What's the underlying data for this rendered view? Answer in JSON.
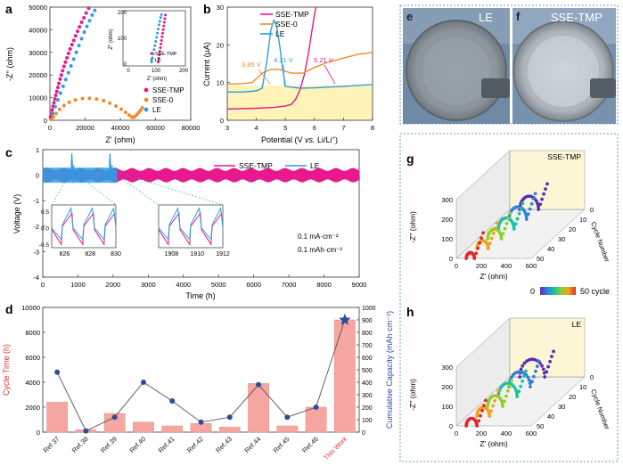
{
  "colors": {
    "pink": "#e8198c",
    "orange": "#f08a2a",
    "blue": "#2b9ee2",
    "navy": "#2a4d9a",
    "red_axis": "#e0302f",
    "bar": "#f5a6a0",
    "bar_fill_b": "#fff3b8",
    "dashed_box": "#3a78c0"
  },
  "panels": {
    "a": "a",
    "b": "b",
    "c": "c",
    "d": "d",
    "e": "e",
    "f": "f",
    "g": "g",
    "h": "h"
  },
  "photos": {
    "e_label": "LE",
    "f_label": "SSE-TMP"
  },
  "chart_data": [
    {
      "id": "a",
      "type": "scatter",
      "xlabel": "Z' (ohm)",
      "ylabel": "-Z'' (ohm)",
      "xlim": [
        0,
        80000
      ],
      "ylim": [
        0,
        50000
      ],
      "xticks": [
        "0",
        "20000",
        "40000",
        "60000",
        "80000"
      ],
      "yticks": [
        "0",
        "10000",
        "20000",
        "30000",
        "40000",
        "50000"
      ],
      "legend": [
        "SSE-TMP",
        "SSE-0",
        "LE"
      ],
      "series": [
        {
          "name": "SSE-TMP",
          "color": "#e8198c",
          "x": [
            400,
            800,
            1300,
            1800,
            2300,
            2800,
            3300,
            3900,
            4500,
            5100,
            5800,
            6500,
            7200,
            8000,
            8800,
            9700,
            10600,
            11500,
            12500,
            13500,
            14600,
            15700,
            16800,
            18000,
            19300,
            20600,
            22000
          ],
          "y": [
            1500,
            3000,
            4600,
            6200,
            7800,
            9400,
            11000,
            12700,
            14500,
            16300,
            18200,
            20000,
            21900,
            23800,
            25700,
            27600,
            29600,
            31500,
            33400,
            35300,
            37300,
            39300,
            41300,
            43300,
            45300,
            47400,
            49500
          ]
        },
        {
          "name": "SSE-0",
          "color": "#f08a2a",
          "x": [
            1000,
            2000,
            3500,
            5500,
            8000,
            11000,
            14500,
            18500,
            22500,
            26500,
            30500,
            34000,
            37500,
            40500,
            43000,
            45000,
            46500,
            47500,
            48500,
            49500,
            50500,
            51500,
            52500
          ],
          "y": [
            400,
            1500,
            3000,
            4800,
            6500,
            7900,
            9000,
            9600,
            9700,
            9400,
            8700,
            7600,
            6300,
            4900,
            3500,
            2300,
            1500,
            1300,
            1800,
            2600,
            3500,
            4500,
            5500
          ]
        },
        {
          "name": "LE",
          "color": "#2b9ee2",
          "x": [
            1500,
            3000,
            4500,
            6000,
            7500,
            9000,
            10500,
            12000,
            13500,
            15000,
            16500,
            18000,
            19500,
            21000,
            22500,
            24000,
            25500
          ],
          "y": [
            3000,
            6000,
            9000,
            12000,
            15000,
            18000,
            21000,
            24000,
            27000,
            30000,
            33000,
            36000,
            39000,
            41500,
            44000,
            46500,
            48500
          ]
        }
      ],
      "inset": {
        "xlabel": "Z' (ohm)",
        "ylabel": "Z'' (ohm)",
        "xlim": [
          0,
          200
        ],
        "ylim": [
          0,
          200
        ],
        "xticks": [
          "0",
          "100",
          "200"
        ],
        "yticks": [
          "0",
          "100",
          "200"
        ],
        "legend": [
          "SSE-TMP",
          "LE"
        ],
        "series": [
          {
            "name": "SSE-TMP",
            "color": "#e8198c",
            "x": [
              108,
              110,
              112,
              114,
              116,
              118,
              120,
              122,
              124,
              126,
              128,
              130,
              132,
              134
            ],
            "y": [
              8,
              22,
              36,
              50,
              64,
              78,
              92,
              106,
              120,
              134,
              148,
              162,
              176,
              190
            ]
          },
          {
            "name": "LE",
            "color": "#2b9ee2",
            "x": [
              84,
              87,
              90,
              93,
              96,
              99,
              102,
              105,
              108,
              111,
              114,
              117,
              120
            ],
            "y": [
              8,
              24,
              40,
              56,
              72,
              88,
              104,
              120,
              136,
              152,
              166,
              180,
              192
            ]
          }
        ]
      }
    },
    {
      "id": "b",
      "type": "line",
      "xlabel": "Potential (V vs. Li/Li+)",
      "ylabel": "Current (μA)",
      "xlim": [
        3,
        8
      ],
      "ylim": [
        0,
        30
      ],
      "xticks": [
        "3",
        "4",
        "5",
        "6",
        "7",
        "8"
      ],
      "yticks": [
        "0",
        "10",
        "20",
        "30"
      ],
      "legend": [
        "SSE-TMP",
        "SSE-0",
        "LE"
      ],
      "annotations": [
        "3.85 V",
        "4.21 V",
        "5.21 V"
      ],
      "series": [
        {
          "name": "SSE-TMP",
          "color": "#e8198c",
          "x": [
            3.0,
            4.0,
            4.6,
            5.0,
            5.2,
            5.35,
            5.5,
            5.65,
            5.8,
            5.9,
            6.0,
            6.05
          ],
          "y": [
            3.0,
            3.2,
            3.4,
            3.8,
            4.2,
            5.5,
            8.0,
            12.0,
            18.0,
            23.0,
            28.0,
            30.0
          ]
        },
        {
          "name": "SSE-0",
          "color": "#f08a2a",
          "x": [
            3.0,
            3.5,
            3.85,
            4.0,
            4.2,
            4.5,
            4.8,
            5.2,
            5.6,
            6.0,
            6.5,
            7.0,
            7.5,
            8.0
          ],
          "y": [
            9.6,
            9.7,
            10.0,
            11.0,
            12.5,
            13.5,
            13.5,
            12.5,
            12.5,
            14.0,
            15.5,
            16.5,
            17.5,
            18.0
          ]
        },
        {
          "name": "LE",
          "color": "#2b9ee2",
          "x": [
            3.0,
            3.5,
            4.0,
            4.2,
            4.35,
            4.5,
            4.6,
            4.7,
            4.8,
            4.9,
            5.0,
            5.5,
            6.0,
            7.0,
            8.0
          ],
          "y": [
            7.5,
            7.5,
            7.8,
            8.5,
            15.0,
            24.0,
            26.5,
            25.0,
            20.0,
            14.0,
            9.0,
            8.5,
            8.6,
            9.0,
            9.5
          ]
        }
      ]
    },
    {
      "id": "c",
      "type": "line",
      "xlabel": "Time (h)",
      "ylabel": "Voltage (V)",
      "xlim": [
        0,
        9000
      ],
      "ylim": [
        -4,
        1
      ],
      "xticks": [
        "0",
        "1000",
        "2000",
        "3000",
        "4000",
        "5000",
        "6000",
        "7000",
        "8000",
        "9000"
      ],
      "yticks": [
        "-4",
        "-3",
        "-2",
        "-1",
        "0",
        "1"
      ],
      "legend": [
        "SSE-TMP",
        "LE"
      ],
      "notes": [
        "0.1 mA·cm⁻²",
        "0.1 mAh·cm⁻²"
      ],
      "series": [
        {
          "name": "SSE-TMP",
          "color": "#e8198c",
          "x_range": [
            0,
            9000
          ],
          "amplitude": 0.28
        },
        {
          "name": "LE",
          "color": "#2b9ee2",
          "x_range": [
            0,
            2100
          ],
          "amplitude": 0.3,
          "spikes_at": [
            826,
            1910
          ]
        }
      ],
      "insets": [
        {
          "xticks": [
            "826",
            "828",
            "830"
          ],
          "yticks": [
            "-0.5",
            "0.0",
            "0.5"
          ],
          "xlim": [
            825,
            830
          ],
          "ylim": [
            -0.6,
            0.7
          ]
        },
        {
          "xticks": [
            "1908",
            "1910",
            "1912"
          ],
          "yticks": [],
          "xlim": [
            1907,
            1912
          ],
          "ylim": [
            -0.6,
            0.7
          ]
        }
      ]
    },
    {
      "id": "d",
      "type": "bar",
      "ylabel": "Cycle Time (h)",
      "y2label": "Cumulative Capacity (mAh·cm⁻²)",
      "categories": [
        "Ref.37",
        "Ref.38",
        "Ref.39",
        "Ref.40",
        "Ref.41",
        "Ref.42",
        "Ref.43",
        "Ref.44",
        "Ref.45",
        "Ref.46",
        "This Work"
      ],
      "values": [
        2400,
        200,
        1500,
        800,
        500,
        700,
        400,
        3900,
        500,
        2000,
        9000
      ],
      "line_values": [
        480,
        10,
        120,
        400,
        250,
        80,
        120,
        380,
        120,
        200,
        900
      ],
      "ylim": [
        0,
        10000
      ],
      "y2lim": [
        0,
        1000
      ],
      "yticks": [
        "0",
        "2000",
        "4000",
        "6000",
        "8000",
        "10000"
      ],
      "y2ticks": [
        "0",
        "100",
        "200",
        "300",
        "400",
        "500",
        "600",
        "700",
        "800",
        "900",
        "1000"
      ]
    },
    {
      "id": "g",
      "type": "scatter",
      "title": "SSE-TMP",
      "xlabel": "Z' (ohm)",
      "ylabel": "-Z'' (ohm)",
      "zlabel": "Cycle Number",
      "xticks": [
        "0",
        "200",
        "400",
        "600"
      ],
      "yticks": [
        "0",
        "100",
        "200",
        "300"
      ],
      "zticks": [
        "0",
        "10",
        "20",
        "30",
        "40",
        "50"
      ],
      "colorbar": {
        "min_label": "0",
        "max_label": "50 cycle"
      },
      "cycles": [
        0,
        10,
        20,
        30,
        40,
        50
      ],
      "arc_diameters": [
        150,
        140,
        125,
        110,
        90,
        65
      ]
    },
    {
      "id": "h",
      "type": "scatter",
      "title": "LE",
      "xlabel": "Z' (ohm)",
      "ylabel": "-Z'' (ohm)",
      "zlabel": "Cycle Number",
      "xticks": [
        "0",
        "200",
        "400",
        "600"
      ],
      "yticks": [
        "0",
        "100",
        "200",
        "300"
      ],
      "zticks": [
        "0",
        "10",
        "20",
        "30",
        "40",
        "50"
      ],
      "cycles": [
        0,
        10,
        20,
        30,
        40,
        50
      ],
      "arc_diameters": [
        200,
        170,
        150,
        120,
        100,
        85
      ]
    }
  ]
}
